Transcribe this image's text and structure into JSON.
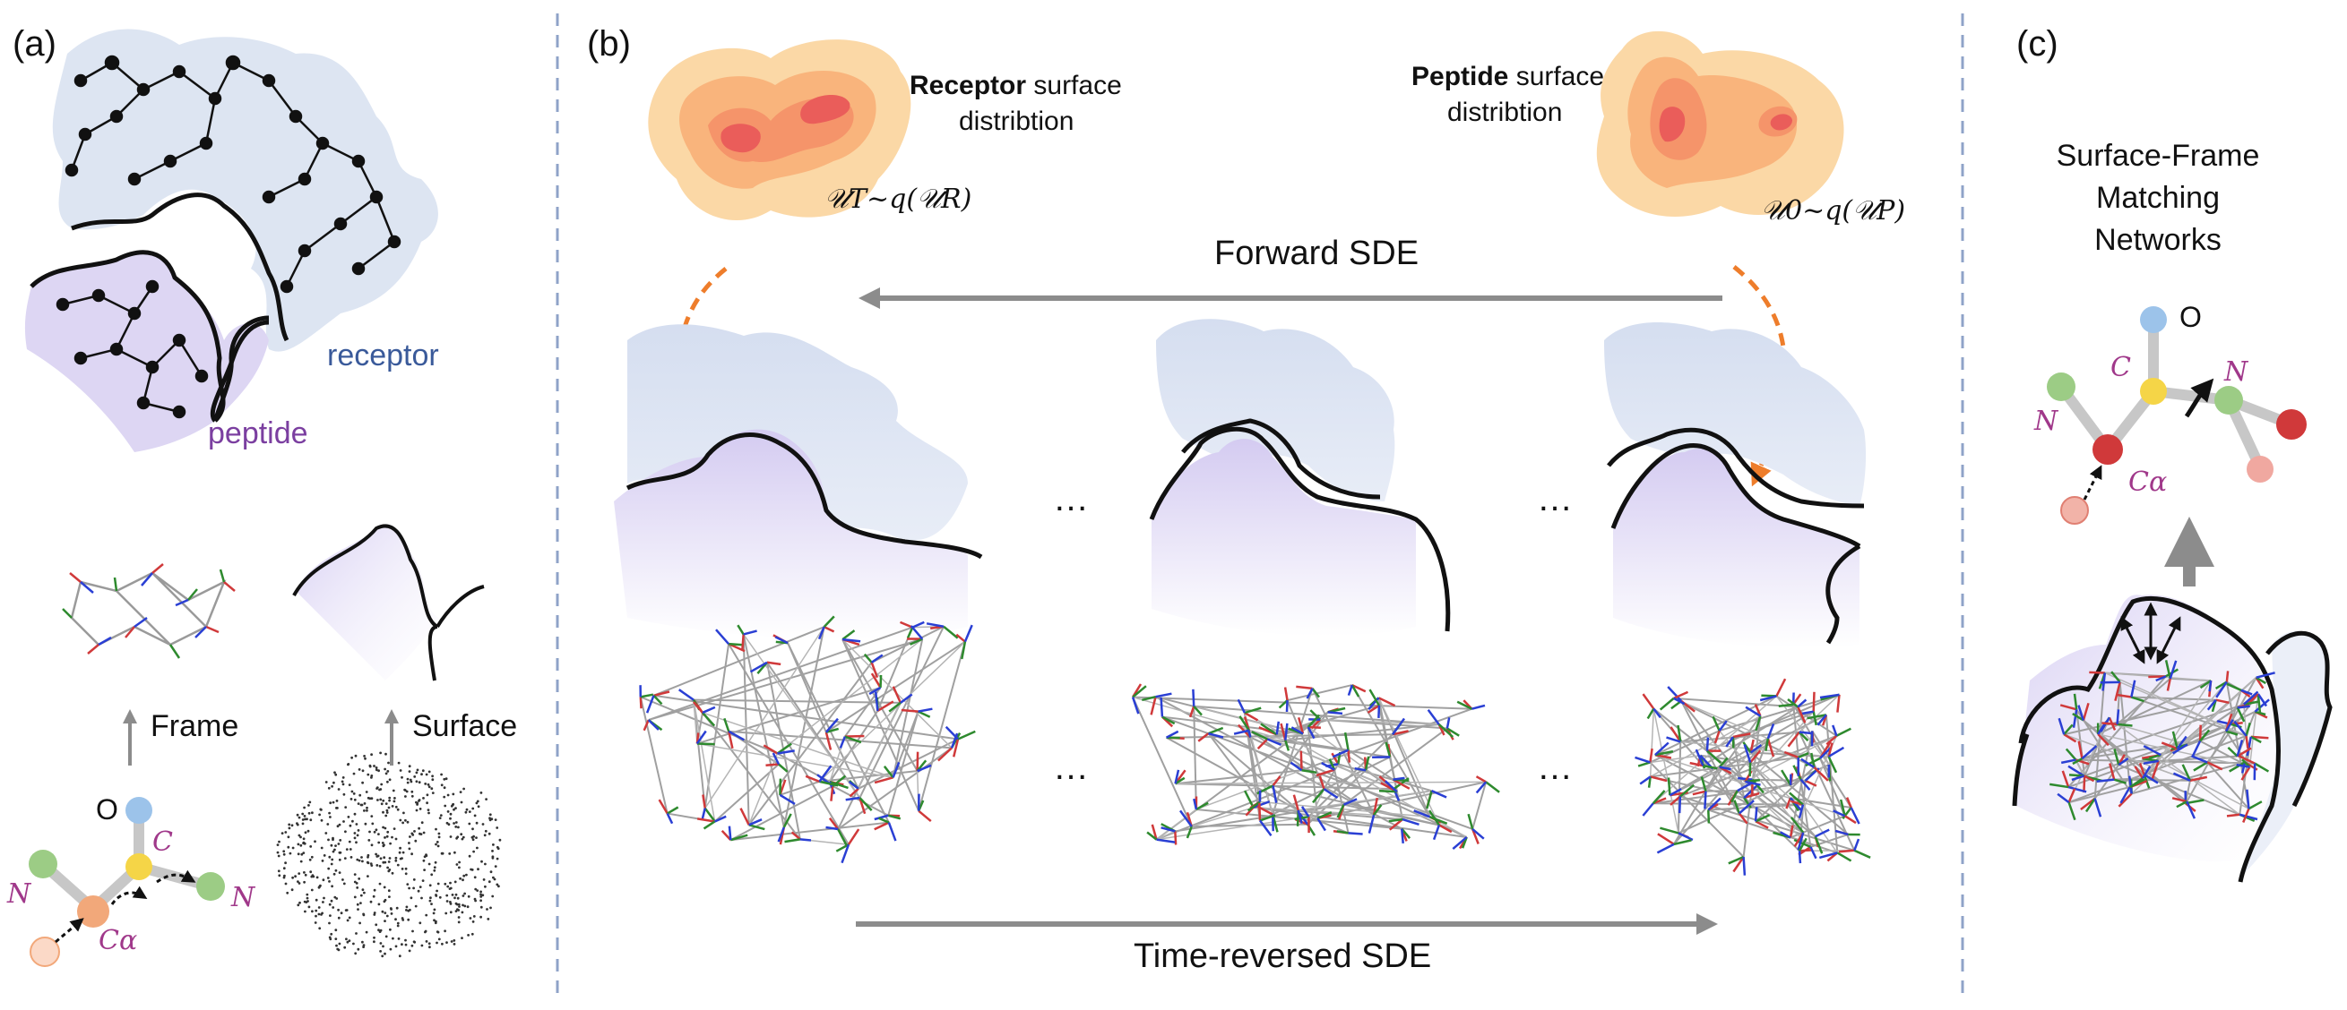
{
  "panels": {
    "a": {
      "label": "(a)",
      "receptor_label": "receptor",
      "peptide_label": "peptide",
      "frame_label": "Frame",
      "surface_label": "Surface",
      "residue": {
        "O": "O",
        "C": "C",
        "N_left": "N",
        "N_right": "N",
        "Ca": "Cα"
      }
    },
    "b": {
      "label": "(b)",
      "receptor_dist_bold": "Receptor",
      "receptor_dist_rest": " surface",
      "receptor_dist_line2": "distribtion",
      "receptor_formula": "𝒰T~q(𝒰R)",
      "peptide_dist_bold": "Peptide",
      "peptide_dist_rest": " surface",
      "peptide_dist_line2": "distribtion",
      "peptide_formula": "𝒰0~q(𝒰P)",
      "forward_sde": "Forward SDE",
      "reverse_sde": "Time-reversed SDE",
      "ellipsis": "…"
    },
    "c": {
      "label": "(c)",
      "title_line1": "Surface-Frame",
      "title_line2": "Matching",
      "title_line3": "Networks",
      "residue": {
        "O": "O",
        "C": "C",
        "N_left": "N",
        "N_right": "N",
        "Ca": "Cα"
      }
    }
  },
  "colors": {
    "receptor": "#dde5f2",
    "peptide": "#ddd6f3",
    "receptor_text": "#3a5a9a",
    "peptide_text": "#7b3fa0",
    "arrow_grey": "#8c8c8c",
    "orange_arrow": "#ee7d2b",
    "divider": "#8fa3c8",
    "atom_O": "#9cc3ea",
    "atom_C": "#f5d547",
    "atom_N": "#9ccc85",
    "atom_Ca_a": "#f2a87a",
    "atom_Ca_c": "#d0393a",
    "italic_label": "#a0388a"
  }
}
